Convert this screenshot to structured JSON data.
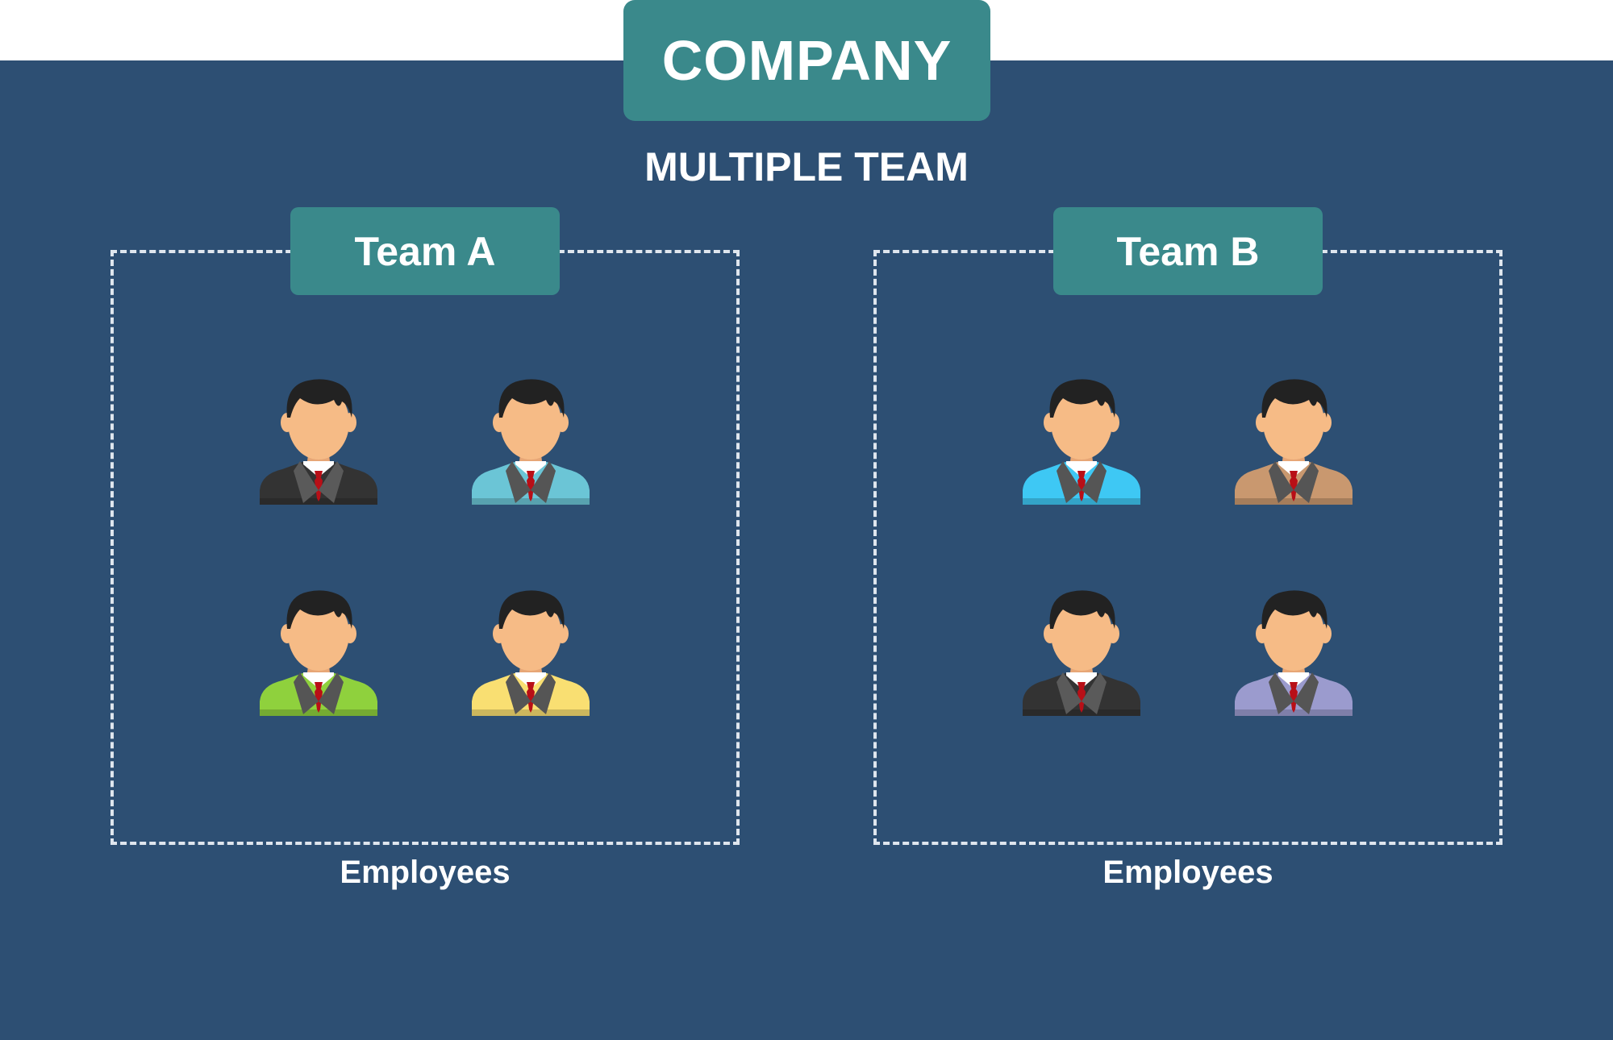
{
  "company": {
    "label": "COMPANY"
  },
  "subtitle": "MULTIPLE TEAM",
  "colors": {
    "panel_bg": "#2d4f73",
    "teal": "#3a898b",
    "dashed": "#dfe6ee",
    "skin": "#f6bb86",
    "hair": "#222222",
    "tie": "#b80f17"
  },
  "teams": [
    {
      "label": "Team A",
      "caption": "Employees",
      "employees": [
        {
          "suit_color": "#333333",
          "icon": "businessman-icon"
        },
        {
          "suit_color": "#6bc5d6",
          "icon": "businessman-icon"
        },
        {
          "suit_color": "#8fd13d",
          "icon": "businessman-icon"
        },
        {
          "suit_color": "#f9df72",
          "icon": "businessman-icon"
        }
      ]
    },
    {
      "label": "Team B",
      "caption": "Employees",
      "employees": [
        {
          "suit_color": "#3ec8f4",
          "icon": "businessman-icon"
        },
        {
          "suit_color": "#c9986f",
          "icon": "businessman-icon"
        },
        {
          "suit_color": "#333333",
          "icon": "businessman-icon"
        },
        {
          "suit_color": "#9b9bce",
          "icon": "businessman-icon"
        }
      ]
    }
  ]
}
